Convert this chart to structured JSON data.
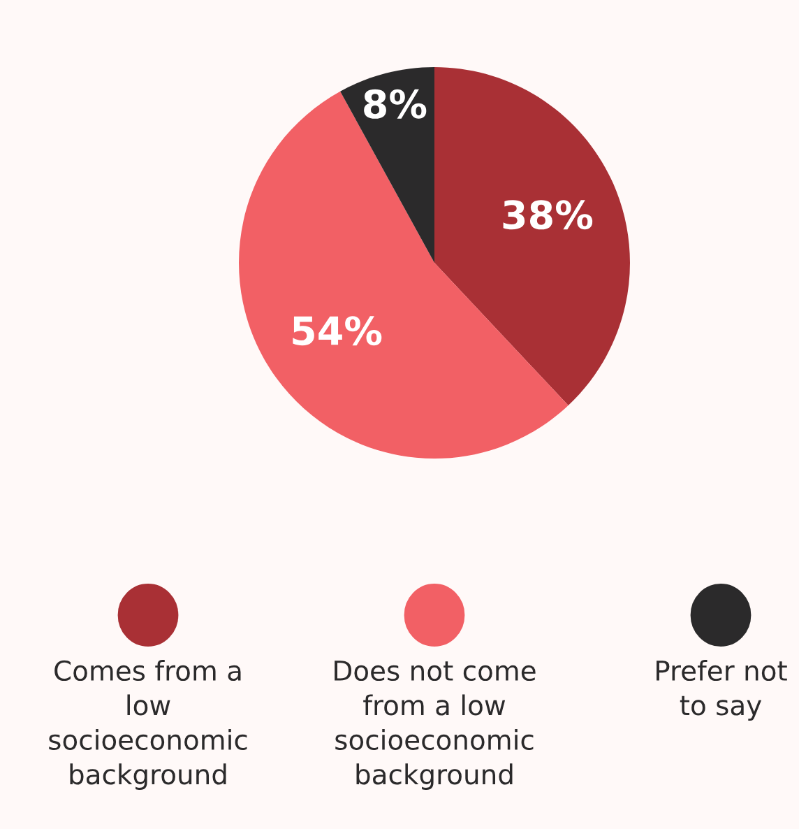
{
  "chart_data": {
    "type": "pie",
    "categories": [
      "Comes from a low socioeconomic background",
      "Does not come from a low socioeconomic background",
      "Prefer not to say"
    ],
    "values": [
      38,
      54,
      8
    ],
    "value_labels": [
      "38%",
      "54%",
      "8%"
    ],
    "colors": [
      "#a93035",
      "#f26065",
      "#2b2a2b"
    ],
    "legend": "bottom"
  }
}
